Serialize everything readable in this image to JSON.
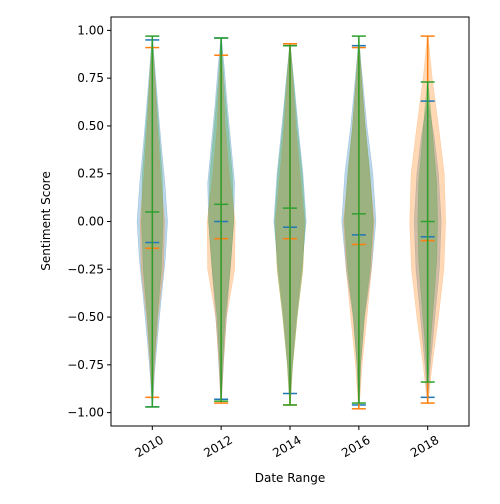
{
  "chart_data": {
    "type": "violin",
    "xlabel": "Date Range",
    "ylabel": "Sentiment Score",
    "ylim": [
      -1.07,
      1.07
    ],
    "yticks": [
      -1.0,
      -0.75,
      -0.5,
      -0.25,
      0.0,
      0.25,
      0.5,
      0.75,
      1.0
    ],
    "ytick_labels": [
      "−1.00",
      "−0.75",
      "−0.50",
      "−0.25",
      "0.00",
      "0.25",
      "0.50",
      "0.75",
      "1.00"
    ],
    "categories": [
      "2010",
      "2012",
      "2014",
      "2016",
      "2018"
    ],
    "x_tick_rotation_deg": 30,
    "grid": false,
    "legend": "none",
    "series": [
      {
        "color": "#1f77b4",
        "stats": [
          {
            "min": -0.97,
            "max": 0.95,
            "median": -0.11
          },
          {
            "min": -0.93,
            "max": 0.96,
            "median": 0.0
          },
          {
            "min": -0.9,
            "max": 0.92,
            "median": -0.03
          },
          {
            "min": -0.96,
            "max": 0.92,
            "median": -0.07
          },
          {
            "min": -0.92,
            "max": 0.63,
            "median": -0.08
          }
        ],
        "density": [
          [
            [
              -0.97,
              0.02
            ],
            [
              -0.8,
              0.12
            ],
            [
              -0.6,
              0.3
            ],
            [
              -0.4,
              0.5
            ],
            [
              -0.2,
              0.72
            ],
            [
              0.0,
              0.85
            ],
            [
              0.2,
              0.7
            ],
            [
              0.4,
              0.5
            ],
            [
              0.6,
              0.32
            ],
            [
              0.8,
              0.15
            ],
            [
              0.95,
              0.02
            ]
          ],
          [
            [
              -0.93,
              0.02
            ],
            [
              -0.8,
              0.1
            ],
            [
              -0.6,
              0.22
            ],
            [
              -0.4,
              0.38
            ],
            [
              -0.2,
              0.55
            ],
            [
              0.0,
              0.7
            ],
            [
              0.2,
              0.75
            ],
            [
              0.4,
              0.55
            ],
            [
              0.6,
              0.35
            ],
            [
              0.8,
              0.18
            ],
            [
              0.96,
              0.02
            ]
          ],
          [
            [
              -0.9,
              0.02
            ],
            [
              -0.75,
              0.12
            ],
            [
              -0.5,
              0.35
            ],
            [
              -0.25,
              0.65
            ],
            [
              0.0,
              0.9
            ],
            [
              0.25,
              0.72
            ],
            [
              0.5,
              0.45
            ],
            [
              0.75,
              0.2
            ],
            [
              0.92,
              0.02
            ]
          ],
          [
            [
              -0.96,
              0.02
            ],
            [
              -0.75,
              0.1
            ],
            [
              -0.5,
              0.32
            ],
            [
              -0.25,
              0.7
            ],
            [
              0.0,
              0.95
            ],
            [
              0.25,
              0.78
            ],
            [
              0.5,
              0.45
            ],
            [
              0.75,
              0.2
            ],
            [
              0.92,
              0.02
            ]
          ],
          [
            [
              -0.92,
              0.02
            ],
            [
              -0.75,
              0.15
            ],
            [
              -0.5,
              0.4
            ],
            [
              -0.25,
              0.65
            ],
            [
              0.0,
              0.75
            ],
            [
              0.25,
              0.6
            ],
            [
              0.45,
              0.35
            ],
            [
              0.63,
              0.02
            ]
          ]
        ]
      },
      {
        "color": "#ff7f0e",
        "stats": [
          {
            "min": -0.92,
            "max": 0.91,
            "median": -0.14
          },
          {
            "min": -0.95,
            "max": 0.87,
            "median": -0.09
          },
          {
            "min": -0.96,
            "max": 0.93,
            "median": -0.09
          },
          {
            "min": -0.98,
            "max": 0.91,
            "median": -0.12
          },
          {
            "min": -0.95,
            "max": 0.97,
            "median": -0.1
          }
        ],
        "density": [
          [
            [
              -0.92,
              0.02
            ],
            [
              -0.75,
              0.12
            ],
            [
              -0.5,
              0.32
            ],
            [
              -0.25,
              0.62
            ],
            [
              0.0,
              0.68
            ],
            [
              0.25,
              0.45
            ],
            [
              0.5,
              0.28
            ],
            [
              0.75,
              0.14
            ],
            [
              0.91,
              0.02
            ]
          ],
          [
            [
              -0.95,
              0.02
            ],
            [
              -0.75,
              0.12
            ],
            [
              -0.5,
              0.3
            ],
            [
              -0.25,
              0.75
            ],
            [
              0.0,
              0.78
            ],
            [
              0.25,
              0.45
            ],
            [
              0.5,
              0.22
            ],
            [
              0.75,
              0.1
            ],
            [
              0.87,
              0.02
            ]
          ],
          [
            [
              -0.96,
              0.02
            ],
            [
              -0.75,
              0.15
            ],
            [
              -0.5,
              0.4
            ],
            [
              -0.25,
              0.72
            ],
            [
              0.0,
              0.8
            ],
            [
              0.25,
              0.55
            ],
            [
              0.5,
              0.32
            ],
            [
              0.75,
              0.15
            ],
            [
              0.93,
              0.02
            ]
          ],
          [
            [
              -0.98,
              0.02
            ],
            [
              -0.75,
              0.18
            ],
            [
              -0.5,
              0.45
            ],
            [
              -0.25,
              0.7
            ],
            [
              0.0,
              0.85
            ],
            [
              0.25,
              0.6
            ],
            [
              0.5,
              0.35
            ],
            [
              0.75,
              0.15
            ],
            [
              0.91,
              0.02
            ]
          ],
          [
            [
              -0.95,
              0.02
            ],
            [
              -0.75,
              0.25
            ],
            [
              -0.5,
              0.6
            ],
            [
              -0.25,
              0.9
            ],
            [
              0.0,
              1.0
            ],
            [
              0.25,
              0.92
            ],
            [
              0.5,
              0.6
            ],
            [
              0.75,
              0.25
            ],
            [
              0.97,
              0.02
            ]
          ]
        ]
      },
      {
        "color": "#2ca02c",
        "stats": [
          {
            "min": -0.97,
            "max": 0.97,
            "median": 0.05
          },
          {
            "min": -0.94,
            "max": 0.96,
            "median": 0.09
          },
          {
            "min": -0.96,
            "max": 0.92,
            "median": 0.07
          },
          {
            "min": -0.95,
            "max": 0.97,
            "median": 0.04
          },
          {
            "min": -0.84,
            "max": 0.73,
            "median": 0.0
          }
        ],
        "density": [
          [
            [
              -0.97,
              0.02
            ],
            [
              -0.75,
              0.1
            ],
            [
              -0.5,
              0.28
            ],
            [
              -0.25,
              0.5
            ],
            [
              0.0,
              0.6
            ],
            [
              0.25,
              0.55
            ],
            [
              0.5,
              0.35
            ],
            [
              0.75,
              0.15
            ],
            [
              0.97,
              0.02
            ]
          ],
          [
            [
              -0.94,
              0.02
            ],
            [
              -0.75,
              0.08
            ],
            [
              -0.5,
              0.22
            ],
            [
              -0.25,
              0.5
            ],
            [
              0.0,
              0.7
            ],
            [
              0.25,
              0.62
            ],
            [
              0.5,
              0.38
            ],
            [
              0.75,
              0.15
            ],
            [
              0.96,
              0.02
            ]
          ],
          [
            [
              -0.96,
              0.02
            ],
            [
              -0.75,
              0.15
            ],
            [
              -0.5,
              0.4
            ],
            [
              -0.25,
              0.7
            ],
            [
              0.0,
              0.85
            ],
            [
              0.25,
              0.68
            ],
            [
              0.5,
              0.4
            ],
            [
              0.75,
              0.18
            ],
            [
              0.92,
              0.02
            ]
          ],
          [
            [
              -0.95,
              0.02
            ],
            [
              -0.75,
              0.1
            ],
            [
              -0.5,
              0.3
            ],
            [
              -0.25,
              0.62
            ],
            [
              0.0,
              0.8
            ],
            [
              0.25,
              0.62
            ],
            [
              0.5,
              0.35
            ],
            [
              0.75,
              0.15
            ],
            [
              0.97,
              0.02
            ]
          ],
          [
            [
              -0.84,
              0.02
            ],
            [
              -0.6,
              0.18
            ],
            [
              -0.4,
              0.35
            ],
            [
              -0.2,
              0.5
            ],
            [
              0.0,
              0.55
            ],
            [
              0.2,
              0.5
            ],
            [
              0.4,
              0.32
            ],
            [
              0.6,
              0.15
            ],
            [
              0.73,
              0.02
            ]
          ]
        ]
      }
    ]
  }
}
